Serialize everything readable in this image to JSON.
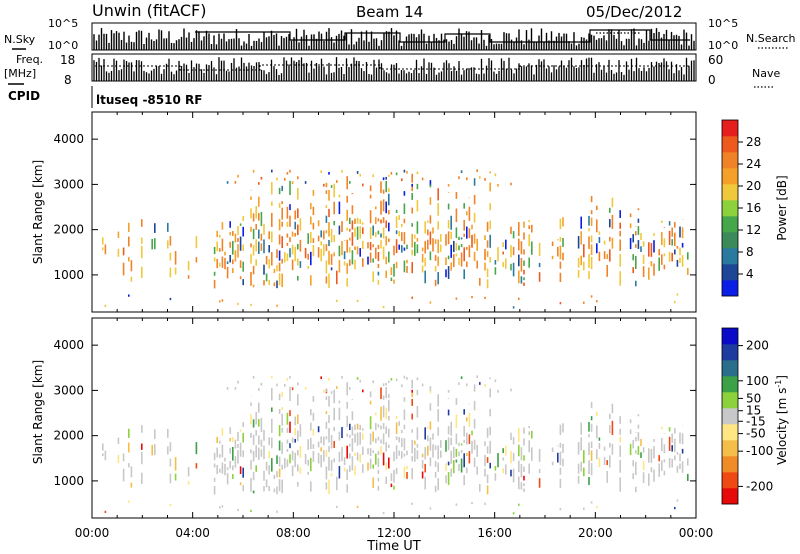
{
  "header": {
    "station": "Unwin (fitACF)",
    "beam": "Beam 14",
    "date": "05/Dec/2012",
    "cpid_label": "CPID",
    "cpid_value": "ltuseq -8510 RF"
  },
  "status_panels": {
    "nsky": {
      "label": "N.Sky",
      "ticks": [
        "10^5",
        "10^0"
      ]
    },
    "nsearch": {
      "label": "N.Search",
      "ticks": [
        "10^5",
        "10^0"
      ]
    },
    "freq": {
      "label_line1": "Freq.",
      "label_line2": "[MHz]",
      "ticks": [
        "18",
        "8"
      ]
    },
    "nave": {
      "label": "Nave",
      "ticks": [
        "60",
        "0"
      ]
    }
  },
  "chart_data": [
    {
      "type": "heatmap",
      "name": "power",
      "ylabel": "Slant Range [km]",
      "xlabel": "",
      "ylim": [
        180,
        4600
      ],
      "yticks": [
        "1000",
        "2000",
        "3000",
        "4000"
      ],
      "colorbar": {
        "label": "Power [dB]",
        "range": [
          0,
          32
        ],
        "ticks": [
          "4",
          "8",
          "12",
          "16",
          "20",
          "24",
          "28"
        ],
        "colors": [
          "#0a1ee6",
          "#1e4696",
          "#2a7aa0",
          "#3c8a5a",
          "#46a64a",
          "#8cd23c",
          "#f0c83c",
          "#f5a028",
          "#f08228",
          "#ee5a1e",
          "#e61e1e"
        ]
      },
      "scatter_bounds": {
        "time_hours": [
          0,
          24
        ],
        "slant_range_km": [
          250,
          3300
        ]
      }
    },
    {
      "type": "heatmap",
      "name": "velocity",
      "ylabel": "Slant Range [km]",
      "xlabel": "Time UT",
      "xticks": [
        "00:00",
        "04:00",
        "08:00",
        "12:00",
        "16:00",
        "20:00",
        "00:00"
      ],
      "ylim": [
        180,
        4600
      ],
      "yticks": [
        "1000",
        "2000",
        "3000",
        "4000"
      ],
      "colorbar": {
        "label_main": "Velocity [m s",
        "label_sup": "-1",
        "label_end": "]",
        "range": [
          -250,
          250
        ],
        "ticks": [
          "200",
          "100",
          "50",
          "15",
          "-15",
          "-50",
          "-100",
          "-200"
        ],
        "colors": [
          "#e60a0a",
          "#f04a14",
          "#f08c28",
          "#f5be4b",
          "#ffe682",
          "#c8c8c8",
          "#8cd23c",
          "#3ca046",
          "#2a6e8c",
          "#1e3ca0",
          "#0a0ac8"
        ]
      }
    }
  ]
}
